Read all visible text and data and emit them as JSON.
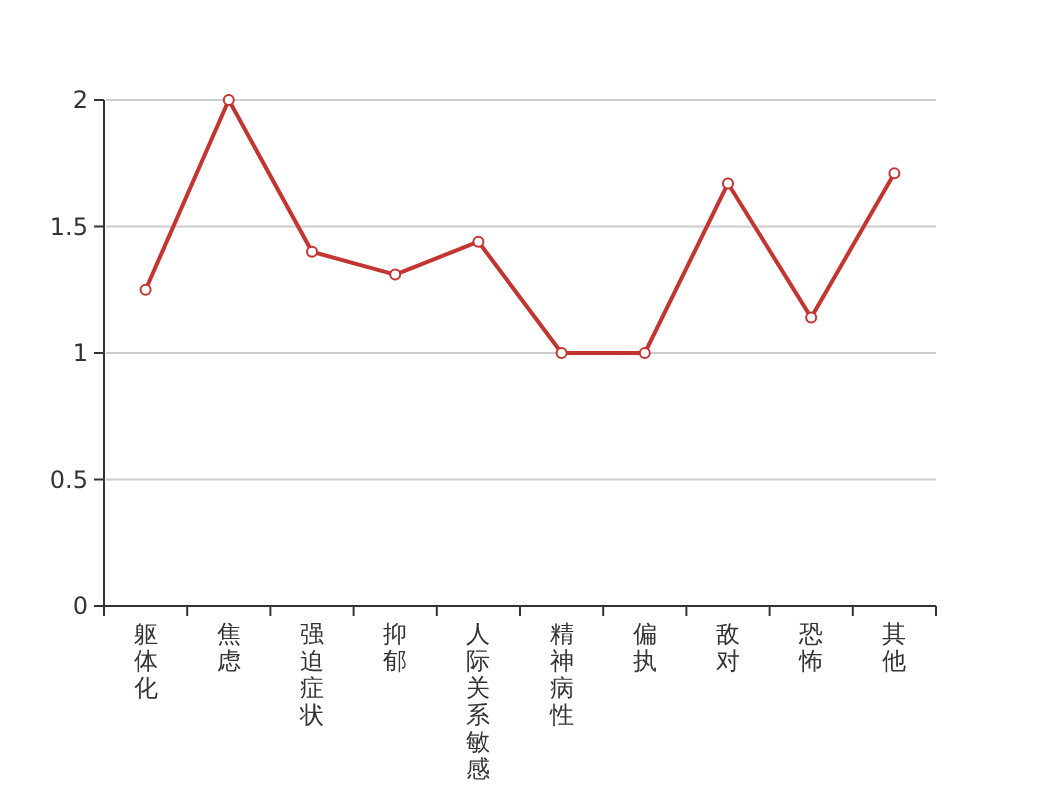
{
  "chart_data": {
    "type": "line",
    "categories": [
      "躯体化",
      "焦虑",
      "强迫症状",
      "抑郁",
      "人际关系敏感",
      "精神病性",
      "偏执",
      "敌对",
      "恐怖",
      "其他"
    ],
    "series": [
      {
        "color": "#c23531",
        "values": [
          1.25,
          2.0,
          1.4,
          1.31,
          1.44,
          1.0,
          1.0,
          1.67,
          1.14,
          1.71
        ]
      }
    ],
    "ylim": [
      0,
      2
    ],
    "yticks": [
      0,
      0.5,
      1,
      1.5,
      2
    ],
    "grid": "y",
    "marker": "circle",
    "line_style": "solid"
  }
}
